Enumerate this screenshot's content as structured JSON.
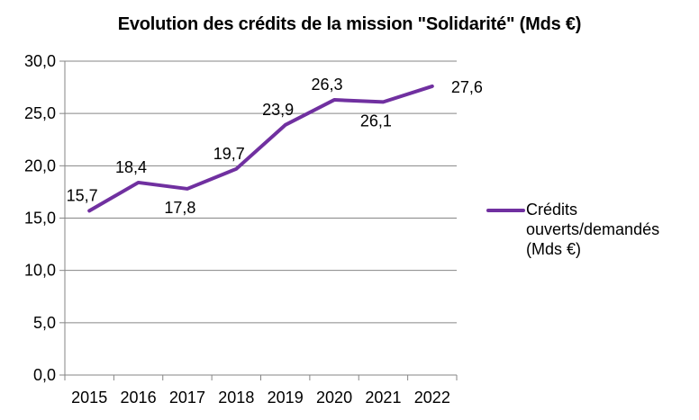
{
  "chart_data": {
    "type": "line",
    "title": "Evolution des crédits de la mission \"Solidarité\" (Mds €)",
    "xlabel": "",
    "ylabel": "",
    "categories": [
      "2015",
      "2016",
      "2017",
      "2018",
      "2019",
      "2020",
      "2021",
      "2022"
    ],
    "series": [
      {
        "name": "Crédits ouverts/demandés (Mds €)",
        "values": [
          15.7,
          18.4,
          17.8,
          19.7,
          23.9,
          26.3,
          26.1,
          27.6
        ],
        "labels": [
          "15,7",
          "18,4",
          "17,8",
          "19,7",
          "23,9",
          "26,3",
          "26,1",
          "27,6"
        ],
        "label_positions": [
          "above",
          "above",
          "below",
          "above",
          "above",
          "above",
          "below",
          "right"
        ],
        "color": "#7030A0"
      }
    ],
    "ylim": [
      0,
      30
    ],
    "yticks": [
      0,
      5,
      10,
      15,
      20,
      25,
      30
    ],
    "ytick_labels": [
      "0,0",
      "5,0",
      "10,0",
      "15,0",
      "20,0",
      "25,0",
      "30,0"
    ],
    "grid": true,
    "legend": "right",
    "gridline_color": "#868686"
  },
  "legend": {
    "lines": [
      "Crédits",
      "ouverts/demandés",
      "(Mds €)"
    ]
  }
}
